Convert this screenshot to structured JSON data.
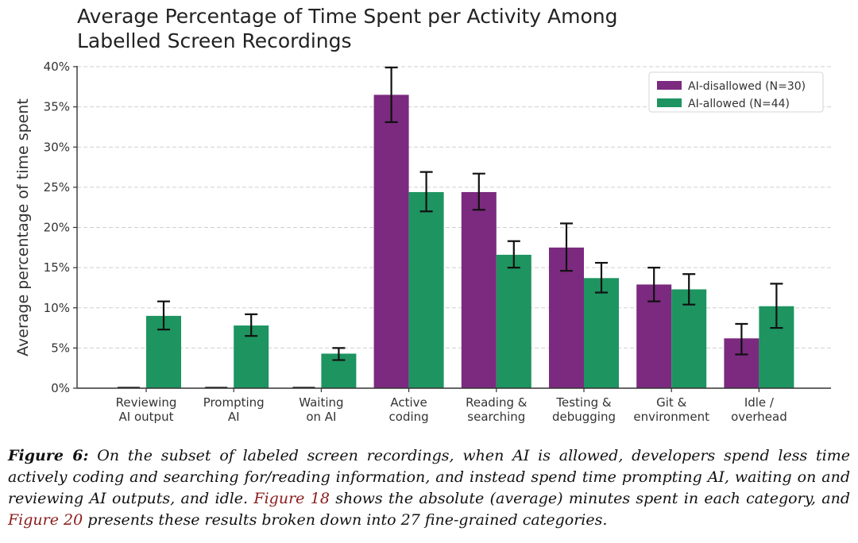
{
  "chart_data": {
    "type": "bar",
    "title": "Average Percentage of Time Spent per Activity Among Labelled Screen Recordings",
    "title_lines": [
      "Average Percentage of Time Spent per Activity Among",
      "Labelled Screen Recordings"
    ],
    "xlabel": "",
    "ylabel": "Average percentage of time spent",
    "ylim": [
      0,
      40
    ],
    "yticks": [
      0,
      5,
      10,
      15,
      20,
      25,
      30,
      35,
      40
    ],
    "ytick_labels": [
      "0%",
      "5%",
      "10%",
      "15%",
      "20%",
      "25%",
      "30%",
      "35%",
      "40%"
    ],
    "grid": "horizontal-dashed",
    "legend_position": "top-right",
    "categories": [
      "Reviewing AI output",
      "Prompting AI",
      "Waiting on AI",
      "Active coding",
      "Reading & searching",
      "Testing & debugging",
      "Git & environment",
      "Idle / overhead"
    ],
    "category_lines": [
      [
        "Reviewing",
        "AI output"
      ],
      [
        "Prompting",
        "AI"
      ],
      [
        "Waiting",
        "on AI"
      ],
      [
        "Active",
        "coding"
      ],
      [
        "Reading &",
        "searching"
      ],
      [
        "Testing &",
        "debugging"
      ],
      [
        "Git &",
        "environment"
      ],
      [
        "Idle /",
        "overhead"
      ]
    ],
    "series": [
      {
        "name": "AI-disallowed (N=30)",
        "color": "#7b2a7f",
        "values": [
          0,
          0,
          0,
          36.5,
          24.4,
          17.5,
          12.9,
          6.2
        ],
        "error_low": [
          0,
          0,
          0,
          33.1,
          22.2,
          14.6,
          10.8,
          4.2
        ],
        "error_high": [
          0,
          0,
          0,
          39.9,
          26.7,
          20.5,
          15.0,
          8.0
        ]
      },
      {
        "name": "AI-allowed (N=44)",
        "color": "#1e9460",
        "values": [
          9.0,
          7.8,
          4.3,
          24.4,
          16.6,
          13.7,
          12.3,
          10.2
        ],
        "error_low": [
          7.3,
          6.5,
          3.5,
          22.0,
          15.0,
          11.9,
          10.4,
          7.5
        ],
        "error_high": [
          10.8,
          9.2,
          5.0,
          26.9,
          18.3,
          15.6,
          14.2,
          13.0
        ]
      }
    ]
  },
  "caption": {
    "figure_label": "Figure 6:",
    "text_1": " On the subset of labeled screen recordings, when AI is allowed, developers spend less time actively coding and searching for/reading information, and instead spend time prompting AI, waiting on and reviewing AI outputs, and idle. ",
    "link_1": "Figure 18",
    "text_2": " shows the absolute (average) minutes spent in each category, and ",
    "link_2": "Figure 20",
    "text_3": " presents these results broken down into 27 fine-grained categories."
  },
  "colors": {
    "ai_disallowed": "#7b2a7f",
    "ai_allowed": "#1e9460",
    "link": "#8b1c1c"
  }
}
